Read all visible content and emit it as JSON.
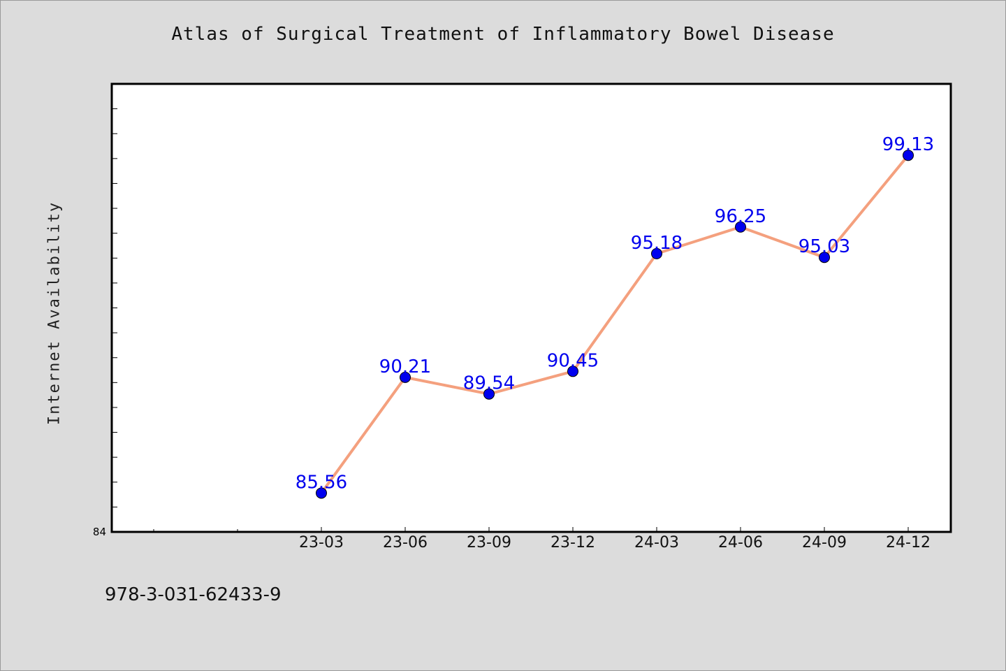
{
  "chart_data": {
    "type": "line",
    "title": "Atlas of Surgical Treatment of Inflammatory Bowel Disease",
    "xlabel": "",
    "ylabel": "Internet Availability",
    "categories": [
      "23-03",
      "23-06",
      "23-09",
      "23-12",
      "24-03",
      "24-06",
      "24-09",
      "24-12"
    ],
    "series": [
      {
        "values": [
          85.56,
          90.21,
          89.54,
          90.45,
          95.18,
          96.25,
          95.03,
          99.13
        ],
        "data_labels": [
          "85.56",
          "90.21",
          "89.54",
          "90.45",
          "95.18",
          "96.25",
          "95.03",
          "99.13"
        ]
      }
    ],
    "y_tick_labels": [
      "84"
    ],
    "ylim": [
      84,
      102
    ],
    "grid": false,
    "legend": "none",
    "colors": {
      "line": "#f4a07e",
      "marker": "#0000ee",
      "data_label": "#0000ee",
      "plot_background": "#ffffff",
      "page_background": "#dcdcdc"
    }
  },
  "footer": {
    "code": "978-3-031-62433-9"
  }
}
